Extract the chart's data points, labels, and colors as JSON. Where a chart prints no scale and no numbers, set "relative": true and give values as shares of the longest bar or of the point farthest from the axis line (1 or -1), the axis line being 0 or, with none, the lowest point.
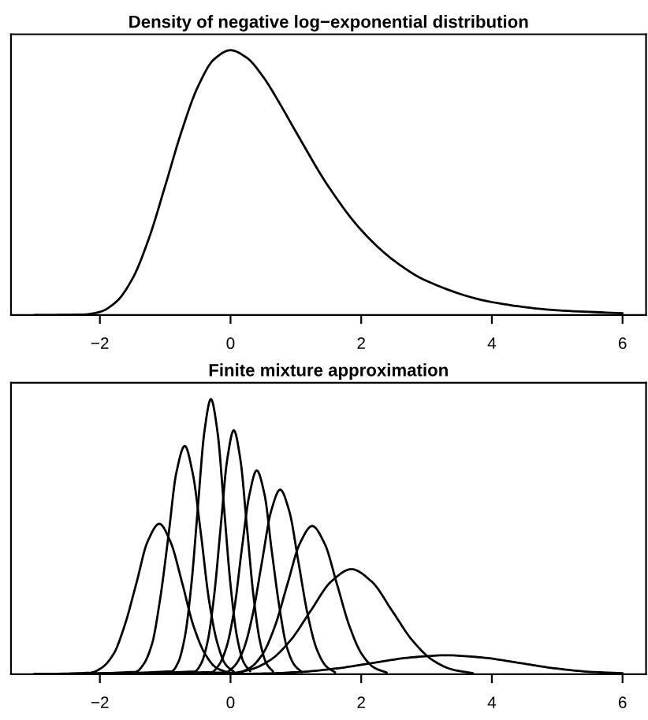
{
  "chart_data": [
    {
      "type": "line",
      "title": "Density of negative log−exponential distribution",
      "relative": true,
      "xlim": [
        -3.36,
        6.36
      ],
      "xticks": [
        {
          "value": -2,
          "label": "−2"
        },
        0,
        2,
        4,
        6
      ],
      "series": [
        {
          "color": "#000000",
          "x": [
            -3,
            -2.25,
            -2,
            -1.75,
            -1.5,
            -1.25,
            -1,
            -0.75,
            -0.5,
            -0.25,
            0,
            0.25,
            0.5,
            0.75,
            1,
            1.5,
            2,
            2.5,
            3,
            4,
            5,
            6
          ],
          "values": [
            0,
            0.002,
            0.012,
            0.05,
            0.138,
            0.289,
            0.488,
            0.693,
            0.862,
            0.966,
            1,
            0.971,
            0.899,
            0.8,
            0.692,
            0.485,
            0.321,
            0.206,
            0.129,
            0.049,
            0.018,
            0.007
          ]
        }
      ]
    },
    {
      "type": "line",
      "title": "Finite mixture approximation",
      "relative": true,
      "xlim": [
        -3.36,
        6.36
      ],
      "xticks": [
        {
          "value": -2,
          "label": "−2"
        },
        0,
        2,
        4,
        6
      ],
      "series": [
        {
          "color": "#000000",
          "x": [
            -3,
            -2.14,
            -1.97,
            -1.79,
            -1.62,
            -1.44,
            -1.27,
            -1.09,
            -0.92,
            -0.74,
            -0.57,
            -0.39,
            -0.22,
            -0.04
          ],
          "values": [
            0,
            0.006,
            0.024,
            0.074,
            0.178,
            0.332,
            0.482,
            0.547,
            0.482,
            0.332,
            0.178,
            0.074,
            0.024,
            0.006
          ]
        },
        {
          "color": "#000000",
          "x": [
            -3,
            -1.45,
            -1.33,
            -1.2,
            -1.08,
            -0.95,
            -0.83,
            -0.7,
            -0.58,
            -0.45,
            -0.33,
            -0.2,
            -0.08,
            0.05
          ],
          "values": [
            0,
            0.009,
            0.037,
            0.112,
            0.27,
            0.504,
            0.732,
            0.83,
            0.732,
            0.504,
            0.27,
            0.112,
            0.037,
            0.009
          ]
        },
        {
          "color": "#000000",
          "x": [
            -3,
            -0.9,
            -0.8,
            -0.7,
            -0.6,
            -0.5,
            -0.4,
            -0.3,
            -0.2,
            -0.1,
            0,
            0.1,
            0.2,
            0.3
          ],
          "values": [
            0,
            0.011,
            0.044,
            0.135,
            0.325,
            0.607,
            0.882,
            1,
            0.882,
            0.607,
            0.325,
            0.135,
            0.044,
            0.011
          ]
        },
        {
          "color": "#000000",
          "x": [
            -3,
            -0.55,
            -0.45,
            -0.35,
            -0.25,
            -0.15,
            -0.05,
            0.05,
            0.15,
            0.25,
            0.35,
            0.45,
            0.55,
            0.65
          ],
          "values": [
            0,
            0.01,
            0.039,
            0.12,
            0.288,
            0.538,
            0.782,
            0.887,
            0.782,
            0.538,
            0.288,
            0.12,
            0.039,
            0.01
          ]
        },
        {
          "color": "#000000",
          "x": [
            -3,
            -0.29,
            -0.18,
            -0.06,
            0.06,
            0.17,
            0.29,
            0.4,
            0.52,
            0.63,
            0.75,
            0.86,
            0.98,
            1.09
          ],
          "values": [
            0,
            0.008,
            0.033,
            0.1,
            0.241,
            0.45,
            0.654,
            0.741,
            0.654,
            0.45,
            0.241,
            0.1,
            0.033,
            0.008
          ]
        },
        {
          "color": "#000000",
          "x": [
            -3,
            -0.08,
            0.06,
            0.2,
            0.34,
            0.48,
            0.62,
            0.76,
            0.9,
            1.04,
            1.18,
            1.32,
            1.46,
            1.6
          ],
          "values": [
            0,
            0.007,
            0.03,
            0.091,
            0.218,
            0.407,
            0.592,
            0.671,
            0.592,
            0.407,
            0.218,
            0.091,
            0.03,
            0.007
          ]
        },
        {
          "color": "#000000",
          "x": [
            -3,
            0.11,
            0.3,
            0.49,
            0.68,
            0.87,
            1.06,
            1.25,
            1.44,
            1.63,
            1.82,
            2.01,
            2.2,
            2.39
          ],
          "values": [
            0,
            0.006,
            0.024,
            0.073,
            0.175,
            0.327,
            0.475,
            0.539,
            0.475,
            0.327,
            0.175,
            0.073,
            0.024,
            0.006
          ]
        },
        {
          "color": "#000000",
          "x": [
            -3,
            -0.01,
            0.3,
            0.61,
            0.92,
            1.23,
            1.54,
            1.85,
            2.16,
            2.47,
            2.78,
            3.09,
            3.4,
            3.71
          ],
          "values": [
            0,
            0.004,
            0.017,
            0.052,
            0.124,
            0.232,
            0.337,
            0.382,
            0.337,
            0.232,
            0.124,
            0.052,
            0.017,
            0.004
          ]
        },
        {
          "color": "#000000",
          "x": [
            -3,
            0.0,
            0.55,
            1.1,
            1.65,
            2.2,
            2.75,
            3.3,
            3.85,
            4.4,
            4.95,
            5.5,
            6
          ],
          "values": [
            0,
            0.001,
            0.003,
            0.009,
            0.022,
            0.042,
            0.061,
            0.069,
            0.061,
            0.042,
            0.022,
            0.009,
            0.004
          ]
        }
      ]
    }
  ]
}
